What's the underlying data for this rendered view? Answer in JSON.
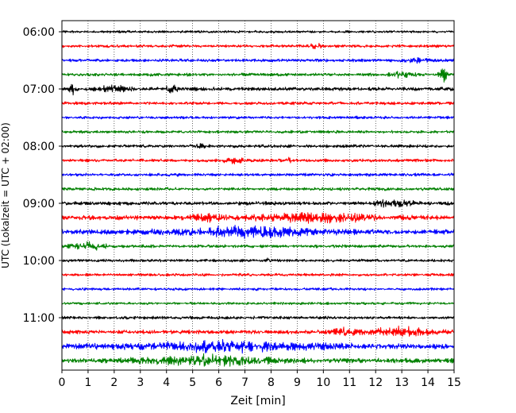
{
  "chart_data": {
    "type": "line",
    "title": "",
    "xlabel": "Zeit  [min]",
    "ylabel": "UTC (Lokalzeit = UTC + 02:00)",
    "xlim": [
      0,
      15
    ],
    "x_ticks": [
      0,
      1,
      2,
      3,
      4,
      5,
      6,
      7,
      8,
      9,
      10,
      11,
      12,
      13,
      14,
      15
    ],
    "y_tick_labels": [
      "06:00",
      "07:00",
      "08:00",
      "09:00",
      "10:00",
      "11:00"
    ],
    "grid": "vertical dotted",
    "trace_interval_min": 15,
    "trace_colors": [
      "#000000",
      "#ff0000",
      "#0000ff",
      "#008000"
    ],
    "traces": [
      {
        "start": "06:00",
        "base_amplitude": 0.25,
        "events": []
      },
      {
        "start": "06:15",
        "base_amplitude": 0.28,
        "events": [
          {
            "t": 9.7,
            "amp": 0.5,
            "width": 0.4
          }
        ]
      },
      {
        "start": "06:30",
        "base_amplitude": 0.3,
        "events": [
          {
            "t": 13.5,
            "amp": 0.35,
            "width": 1.0
          }
        ]
      },
      {
        "start": "06:45",
        "base_amplitude": 0.3,
        "events": [
          {
            "t": 14.6,
            "amp": 1.2,
            "width": 0.35
          },
          {
            "t": 13.0,
            "amp": 0.4,
            "width": 0.8
          }
        ]
      },
      {
        "start": "07:00",
        "base_amplitude": 0.35,
        "events": [
          {
            "t": 0.4,
            "amp": 1.3,
            "width": 0.2
          },
          {
            "t": 4.2,
            "amp": 0.9,
            "width": 0.35
          },
          {
            "t": 2.0,
            "amp": 0.45,
            "width": 1.2
          }
        ]
      },
      {
        "start": "07:15",
        "base_amplitude": 0.3,
        "events": []
      },
      {
        "start": "07:30",
        "base_amplitude": 0.27,
        "events": []
      },
      {
        "start": "07:45",
        "base_amplitude": 0.28,
        "events": []
      },
      {
        "start": "08:00",
        "base_amplitude": 0.3,
        "events": [
          {
            "t": 5.3,
            "amp": 0.45,
            "width": 0.4
          }
        ]
      },
      {
        "start": "08:15",
        "base_amplitude": 0.3,
        "events": [
          {
            "t": 6.6,
            "amp": 0.45,
            "width": 0.8
          },
          {
            "t": 8.7,
            "amp": 0.45,
            "width": 0.2
          }
        ]
      },
      {
        "start": "08:30",
        "base_amplitude": 0.3,
        "events": []
      },
      {
        "start": "08:45",
        "base_amplitude": 0.3,
        "events": []
      },
      {
        "start": "09:00",
        "base_amplitude": 0.35,
        "events": [
          {
            "t": 13.0,
            "amp": 0.65,
            "width": 0.9
          },
          {
            "t": 12.2,
            "amp": 0.5,
            "width": 0.4
          }
        ]
      },
      {
        "start": "09:15",
        "base_amplitude": 0.45,
        "events": [
          {
            "t": 10.0,
            "amp": 0.75,
            "width": 4.5
          },
          {
            "t": 5.5,
            "amp": 0.55,
            "width": 1.2
          }
        ]
      },
      {
        "start": "09:30",
        "base_amplitude": 0.5,
        "events": [
          {
            "t": 7.0,
            "amp": 0.8,
            "width": 5.0
          }
        ]
      },
      {
        "start": "09:45",
        "base_amplitude": 0.3,
        "events": [
          {
            "t": 1.0,
            "amp": 0.7,
            "width": 1.2
          }
        ]
      },
      {
        "start": "10:00",
        "base_amplitude": 0.28,
        "events": [
          {
            "t": 7.9,
            "amp": 0.5,
            "width": 0.15
          }
        ]
      },
      {
        "start": "10:15",
        "base_amplitude": 0.27,
        "events": []
      },
      {
        "start": "10:30",
        "base_amplitude": 0.27,
        "events": []
      },
      {
        "start": "10:45",
        "base_amplitude": 0.25,
        "events": []
      },
      {
        "start": "11:00",
        "base_amplitude": 0.3,
        "events": []
      },
      {
        "start": "11:15",
        "base_amplitude": 0.4,
        "events": [
          {
            "t": 13.0,
            "amp": 0.75,
            "width": 2.2
          },
          {
            "t": 10.8,
            "amp": 0.6,
            "width": 1.0
          }
        ]
      },
      {
        "start": "11:30",
        "base_amplitude": 0.55,
        "events": [
          {
            "t": 6.5,
            "amp": 0.8,
            "width": 6.0
          }
        ]
      },
      {
        "start": "11:45",
        "base_amplitude": 0.5,
        "events": [
          {
            "t": 5.5,
            "amp": 0.8,
            "width": 4.0
          }
        ]
      }
    ]
  }
}
